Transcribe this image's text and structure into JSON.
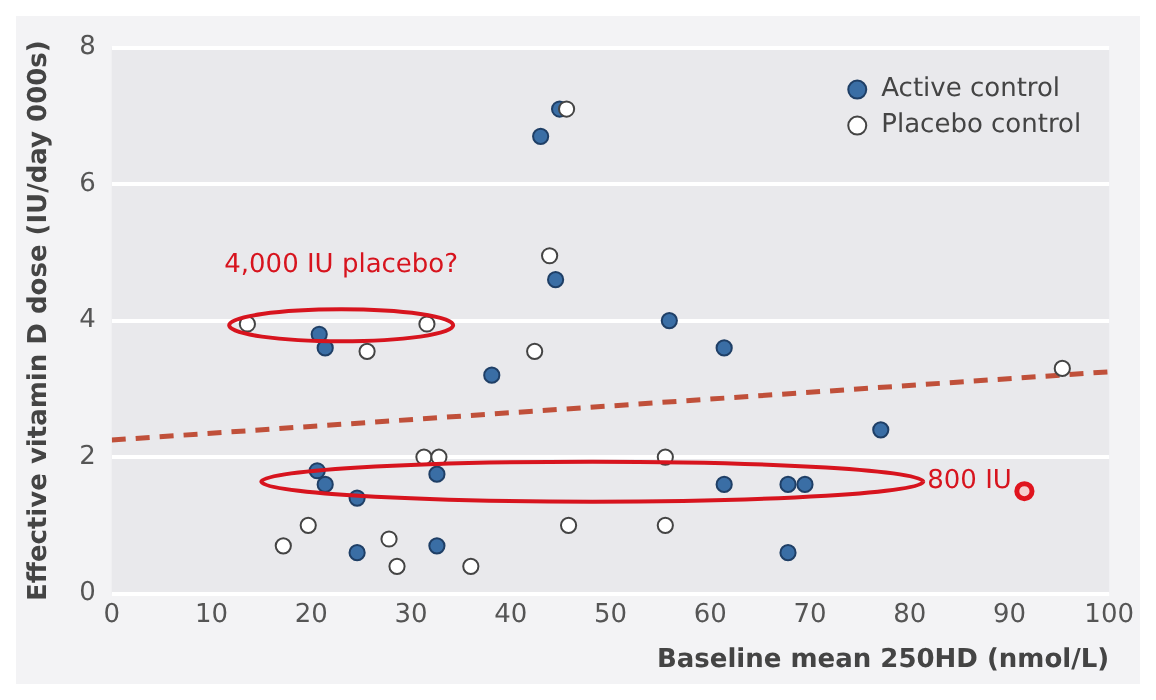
{
  "chart_data": {
    "type": "scatter",
    "xlabel": "Baseline mean 250HD (nmol/L)",
    "ylabel": "Effective vitamin D dose (IU/day 000s)",
    "xlim": [
      0,
      100
    ],
    "xticks": [
      0,
      10,
      20,
      30,
      40,
      50,
      60,
      70,
      80,
      90,
      100
    ],
    "ylim": [
      0,
      8
    ],
    "yticks": [
      0,
      2,
      4,
      6,
      8
    ],
    "grid": "y",
    "legend": "top right",
    "marker": "circle",
    "series": [
      {
        "name": "Active control",
        "color": "#3a6ea5",
        "x": [
          43.0,
          44.9,
          44.5,
          55.9,
          61.4,
          20.8,
          21.4,
          38.1,
          77.1,
          20.6,
          21.4,
          24.6,
          32.6,
          61.4,
          67.8,
          69.5,
          24.6,
          32.6,
          67.8
        ],
        "values": [
          6.7,
          7.1,
          4.6,
          4.0,
          3.6,
          3.8,
          3.6,
          3.2,
          2.4,
          1.8,
          1.6,
          1.4,
          1.75,
          1.6,
          1.6,
          1.6,
          0.6,
          0.7,
          0.6
        ]
      },
      {
        "name": "Placebo control",
        "color": "#ffffff",
        "x": [
          45.6,
          43.9,
          13.6,
          31.6,
          25.6,
          42.4,
          31.3,
          32.8,
          55.5,
          19.7,
          17.2,
          45.8,
          27.8,
          28.6,
          36.0,
          55.5,
          95.3
        ],
        "values": [
          7.1,
          4.95,
          3.95,
          3.95,
          3.55,
          3.55,
          2.0,
          2.0,
          2.0,
          1.0,
          0.7,
          1.0,
          0.8,
          0.4,
          0.4,
          1.0,
          3.3
        ]
      },
      {
        "color": "#e0141e",
        "x": [
          91.5
        ],
        "values": [
          1.5
        ]
      },
      {
        "type": "line",
        "color": "#c0503a",
        "line_style": "dashed",
        "marker": "none",
        "x": [
          0,
          100
        ],
        "values": [
          2.25,
          3.25
        ]
      }
    ],
    "annotations": [
      "4,000 IU placebo?",
      "800 IU"
    ]
  }
}
